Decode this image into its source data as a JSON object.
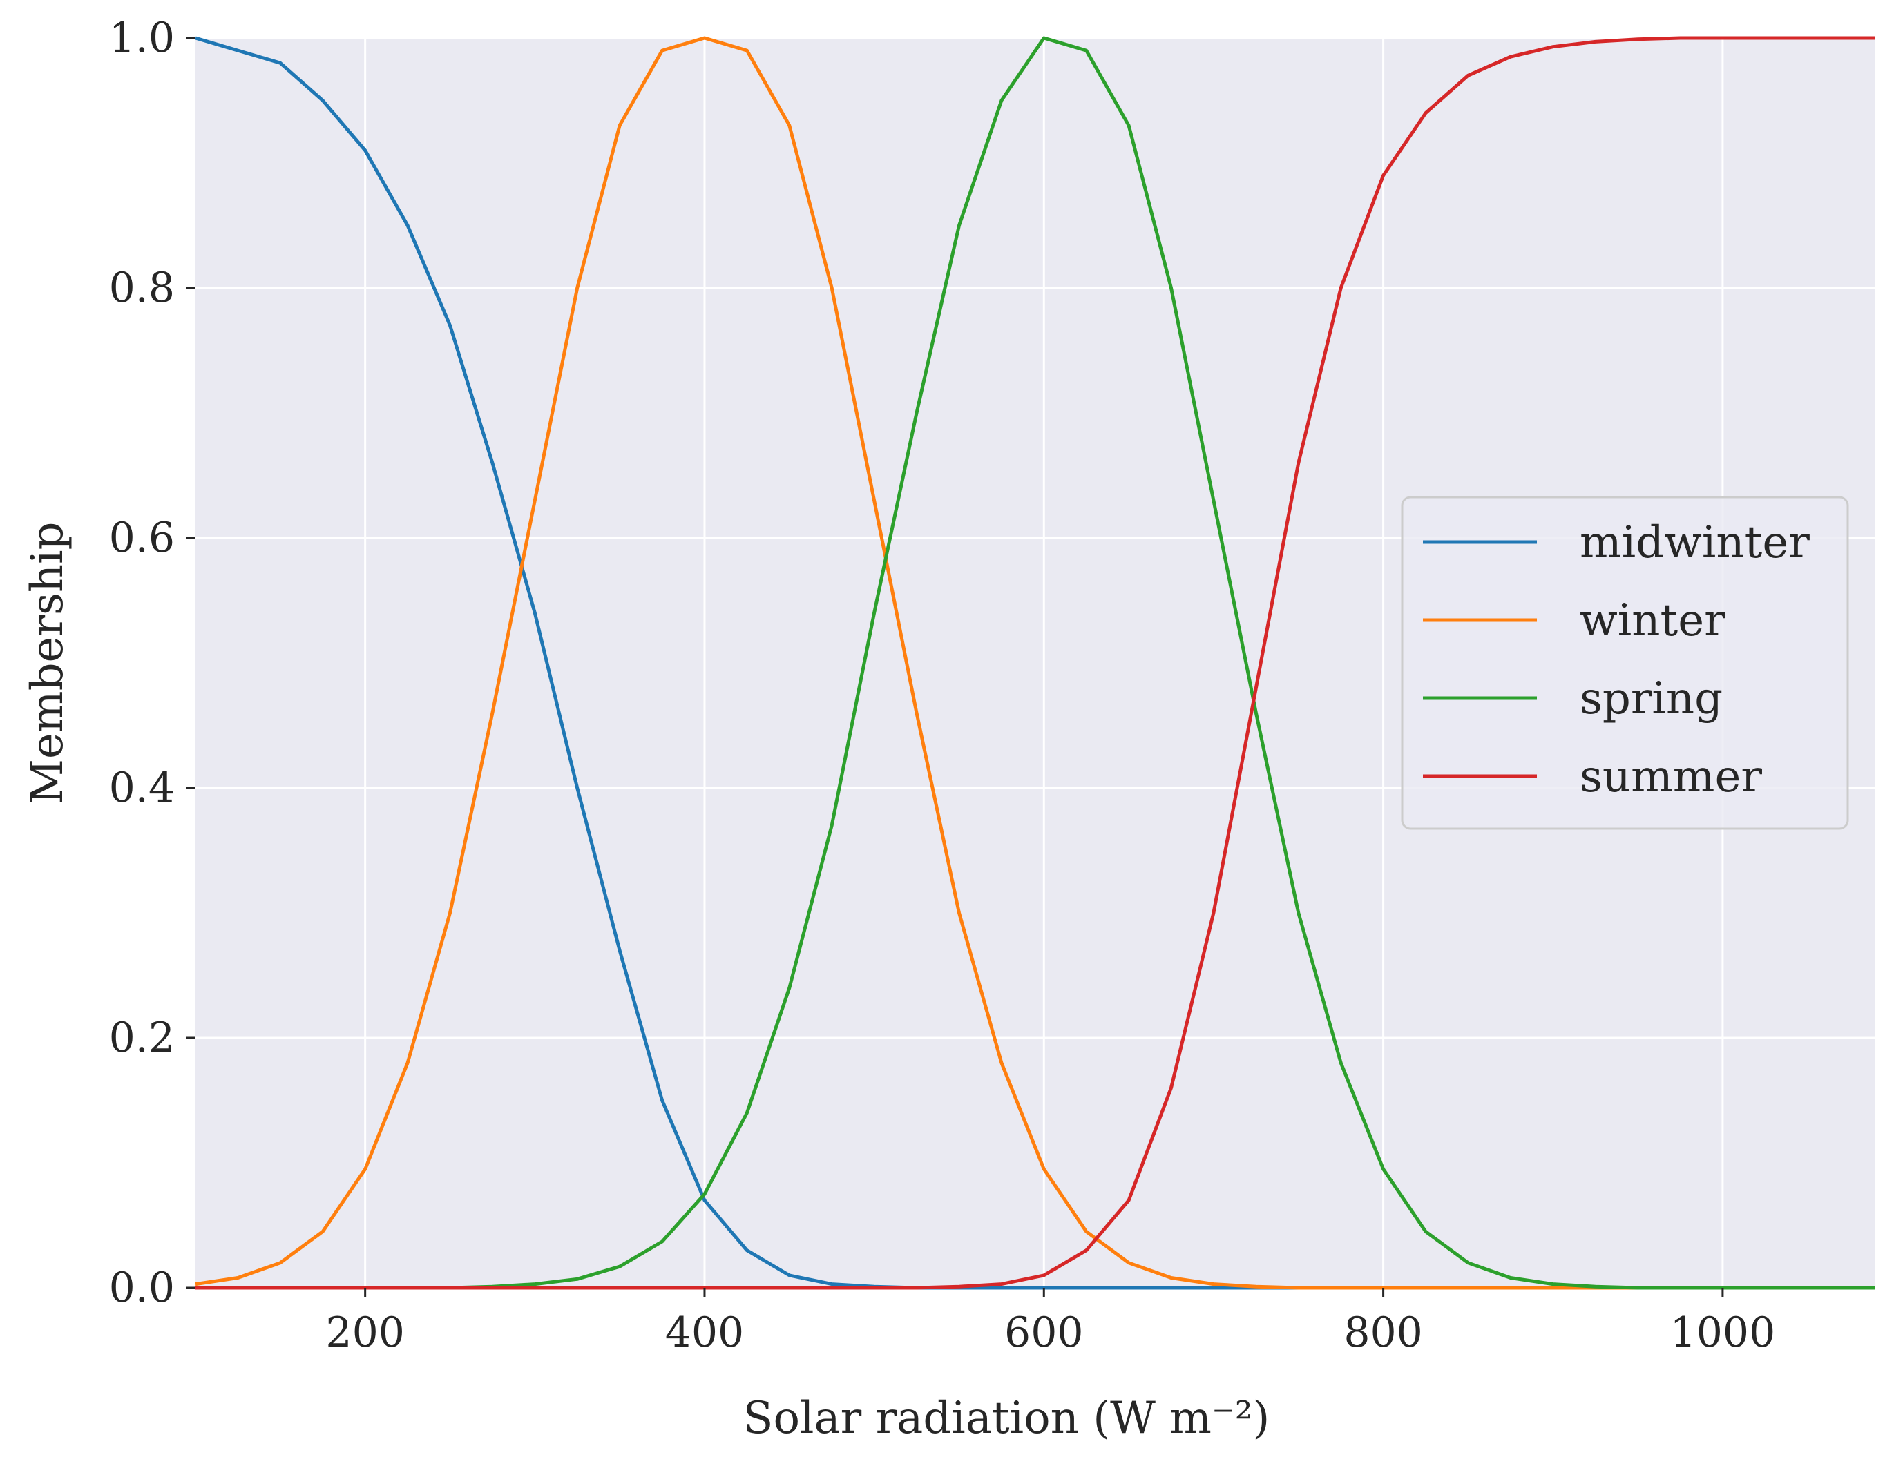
{
  "chart_data": {
    "type": "line",
    "title": "",
    "xlabel": "Solar radiation (W m⁻²)",
    "ylabel": "Membership",
    "xlim": [
      100,
      1090
    ],
    "ylim": [
      0,
      1
    ],
    "x_ticks": [
      200,
      400,
      600,
      800,
      1000
    ],
    "x_tick_labels": [
      "200",
      "400",
      "600",
      "800",
      "1000"
    ],
    "y_ticks": [
      0,
      0.2,
      0.4,
      0.6,
      0.8,
      1.0
    ],
    "y_tick_labels": [
      "0.0",
      "0.2",
      "0.4",
      "0.6",
      "0.8",
      "1.0"
    ],
    "grid": true,
    "legend_position": "center-right",
    "x": [
      100,
      125,
      150,
      175,
      200,
      225,
      250,
      275,
      300,
      325,
      350,
      375,
      400,
      425,
      450,
      475,
      500,
      525,
      550,
      575,
      600,
      625,
      650,
      675,
      700,
      725,
      750,
      775,
      800,
      825,
      850,
      875,
      900,
      925,
      950,
      975,
      1000,
      1025,
      1050,
      1075,
      1090
    ],
    "series": [
      {
        "name": "midwinter",
        "color": "#1f77b4",
        "values": [
          1.0,
          0.99,
          0.98,
          0.95,
          0.91,
          0.85,
          0.77,
          0.66,
          0.54,
          0.4,
          0.27,
          0.15,
          0.07,
          0.03,
          0.01,
          0.003,
          0.001,
          0.0,
          0.0,
          0.0,
          0.0,
          0.0,
          0.0,
          0.0,
          0.0,
          0.0,
          0.0,
          0.0,
          0.0,
          0.0,
          0.0,
          0.0,
          0.0,
          0.0,
          0.0,
          0.0,
          0.0,
          0.0,
          0.0,
          0.0,
          0.0
        ]
      },
      {
        "name": "winter",
        "color": "#ff7f0e",
        "values": [
          0.003,
          0.008,
          0.02,
          0.045,
          0.095,
          0.18,
          0.3,
          0.46,
          0.63,
          0.8,
          0.93,
          0.99,
          1.0,
          0.99,
          0.93,
          0.8,
          0.63,
          0.46,
          0.3,
          0.18,
          0.095,
          0.045,
          0.02,
          0.008,
          0.003,
          0.001,
          0.0,
          0.0,
          0.0,
          0.0,
          0.0,
          0.0,
          0.0,
          0.0,
          0.0,
          0.0,
          0.0,
          0.0,
          0.0,
          0.0,
          0.0
        ]
      },
      {
        "name": "spring",
        "color": "#2ca02c",
        "values": [
          0.0,
          0.0,
          0.0,
          0.0,
          0.0,
          0.0,
          0.0,
          0.001,
          0.003,
          0.007,
          0.017,
          0.037,
          0.075,
          0.14,
          0.24,
          0.37,
          0.54,
          0.7,
          0.85,
          0.95,
          1.0,
          0.99,
          0.93,
          0.8,
          0.63,
          0.46,
          0.3,
          0.18,
          0.095,
          0.045,
          0.02,
          0.008,
          0.003,
          0.001,
          0.0,
          0.0,
          0.0,
          0.0,
          0.0,
          0.0,
          0.0
        ]
      },
      {
        "name": "summer",
        "color": "#d62728",
        "values": [
          0.0,
          0.0,
          0.0,
          0.0,
          0.0,
          0.0,
          0.0,
          0.0,
          0.0,
          0.0,
          0.0,
          0.0,
          0.0,
          0.0,
          0.0,
          0.0,
          0.0,
          0.0,
          0.001,
          0.003,
          0.01,
          0.03,
          0.07,
          0.16,
          0.3,
          0.48,
          0.66,
          0.8,
          0.89,
          0.94,
          0.97,
          0.985,
          0.993,
          0.997,
          0.999,
          1.0,
          1.0,
          1.0,
          1.0,
          1.0,
          1.0
        ]
      }
    ]
  },
  "style": {
    "plot_background": "#eaeaf2",
    "grid_color": "#ffffff",
    "text_color": "#262626",
    "legend_background": "#eaeaf2",
    "legend_border": "#cccccc"
  }
}
